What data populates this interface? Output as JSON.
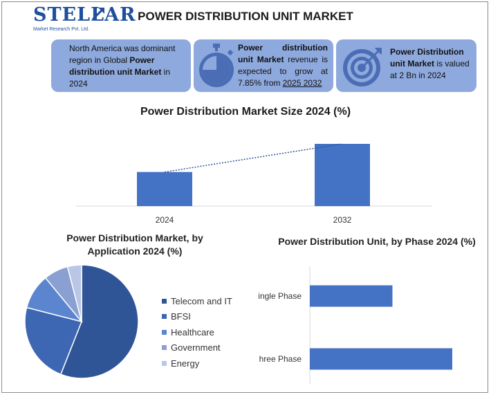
{
  "brand": {
    "logo_text": "STELLAR",
    "logo_sub": "Market Research Pvt. Ltd."
  },
  "title": "POWER DISTRIBUTION UNIT MARKET",
  "cards": {
    "c1_pre": "North America was dominant region in Global ",
    "c1_bold": "Power distribution unit Market",
    "c1_post": " in 2024",
    "c2_bold": "Power distribution unit Market",
    "c2_mid": " revenue is expected to grow at 7.85% from ",
    "c2_link": "2025 2032",
    "c3_bold": "Power Distribution unit Market",
    "c3_post": " is valued at 2 Bn in 2024"
  },
  "icons": {
    "card2": "stopwatch-icon",
    "card3": "target-icon"
  },
  "colors": {
    "accent": "#4472c4",
    "card_bg": "#8ea9dd",
    "pie": [
      "#2f5597",
      "#3d67b2",
      "#5b86cf",
      "#8a9fd2",
      "#b9c6e6"
    ]
  },
  "chart_data": [
    {
      "type": "bar",
      "title": "Power Distribution Market Size 2024 (%)",
      "categories": [
        "2024",
        "2032"
      ],
      "values": [
        2,
        3.65
      ],
      "trendline": true
    },
    {
      "type": "pie",
      "title": "Power Distribution Market, by Application 2024 (%)",
      "labels": [
        "Telecom and IT",
        "BFSI",
        "Healthcare",
        "Government",
        "Energy"
      ],
      "values": [
        56,
        23,
        10,
        7,
        4
      ]
    },
    {
      "type": "bar",
      "orientation": "horizontal",
      "title": "Power Distribution Unit, by Phase 2024 (%)",
      "categories": [
        "ingle Phase",
        "hree Phase"
      ],
      "values": [
        58,
        100
      ]
    }
  ]
}
